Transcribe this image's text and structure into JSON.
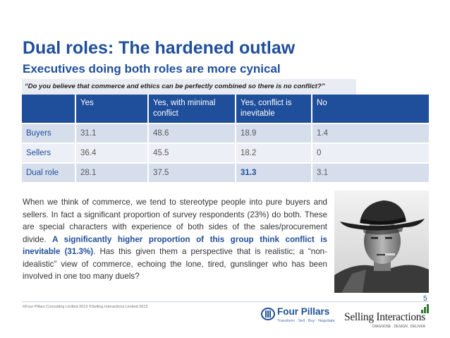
{
  "slide": {
    "title": "Dual roles: The hardened outlaw",
    "subtitle": "Executives doing both roles are more cynical",
    "question": "“Do you believe that commerce and ethics can be perfectly combined so there is no conflict?”"
  },
  "table": {
    "headers": [
      "",
      "Yes",
      "Yes, with minimal conflict",
      "Yes, conflict is inevitable",
      "No"
    ],
    "rows": [
      {
        "label": "Buyers",
        "cells": [
          "31.1",
          "48.6",
          "18.9",
          "1.4"
        ]
      },
      {
        "label": "Sellers",
        "cells": [
          "36.4",
          "45.5",
          "18.2",
          "0"
        ]
      },
      {
        "label": "Dual role",
        "cells": [
          "28.1",
          "37.5",
          "31.3",
          "3.1"
        ]
      }
    ]
  },
  "body": {
    "part1": "When we think of commerce, we tend to stereotype people into pure buyers and sellers. In fact a significant proportion of survey respondents (23%) do both. These are special characters with experience of both sides of the sales/procurement divide. ",
    "emphasis": "A significantly higher proportion of this group think conflict is inevitable (31.3%)",
    "part2": ". Has this given them a perspective that is realistic; a “non-idealistic” view of commerce, echoing the lone, tired, gunslinger who has been involved in one too many duels?"
  },
  "footer": {
    "page_number": "5",
    "copyright": "©Four Pillars Consulting Limited 2013 ©Selling Interactions Limited 2013",
    "four_pillars_name": "Four Pillars",
    "four_pillars_tagline": "Transform · Sell · Buy · Negotiate",
    "selling_interactions_name": "Selling Interactions",
    "selling_interactions_tagline": "DIAGNOSE . DESIGN . DELIVER"
  },
  "colors": {
    "brand_blue": "#1f4e9a",
    "table_header": "#1f4e9a",
    "row_dark": "#d6deec",
    "row_light": "#eceff6"
  },
  "icons": {
    "four_pillars_logo": "four-pillars-logo-icon",
    "selling_interactions_bars": "bar-chart-icon",
    "photo": "gunslinger-photo"
  }
}
